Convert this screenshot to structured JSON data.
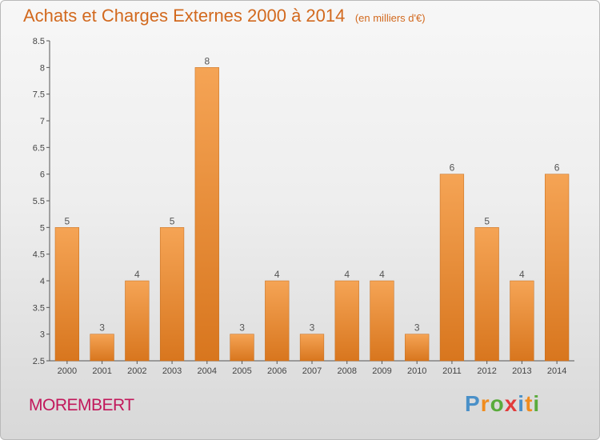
{
  "header": {
    "title": "Achats et Charges Externes 2000 à 2014",
    "subtitle": "(en milliers d'€)"
  },
  "footer": {
    "commune": "MOREMBERT",
    "brand": "Proxiti"
  },
  "colors": {
    "bar_top": "#f5a455",
    "bar_bottom": "#d8761e",
    "title": "#d2691e",
    "commune": "#c2185b",
    "brand_letters": [
      "#4a90c8",
      "#f08c1e",
      "#5aab3c",
      "#e23b3b",
      "#4a90c8",
      "#f08c1e",
      "#5aab3c"
    ]
  },
  "chart_data": {
    "type": "bar",
    "title": "Achats et Charges Externes 2000 à 2014",
    "subtitle": "(en milliers d'€)",
    "xlabel": "",
    "ylabel": "",
    "categories": [
      "2000",
      "2001",
      "2002",
      "2003",
      "2004",
      "2005",
      "2006",
      "2007",
      "2008",
      "2009",
      "2010",
      "2011",
      "2012",
      "2013",
      "2014"
    ],
    "values": [
      5,
      3,
      4,
      5,
      8,
      3,
      4,
      3,
      4,
      4,
      3,
      6,
      5,
      4,
      6
    ],
    "data_labels": [
      "5",
      "3",
      "4",
      "5",
      "8",
      "3",
      "4",
      "3",
      "4",
      "4",
      "3",
      "6",
      "5",
      "4",
      "6"
    ],
    "ylim": [
      2.5,
      8.5
    ],
    "yticks": [
      "2.5",
      "3",
      "3.5",
      "4",
      "4.5",
      "5",
      "5.5",
      "6",
      "6.5",
      "7",
      "7.5",
      "8",
      "8.5"
    ],
    "grid": "none",
    "legend": "none"
  }
}
